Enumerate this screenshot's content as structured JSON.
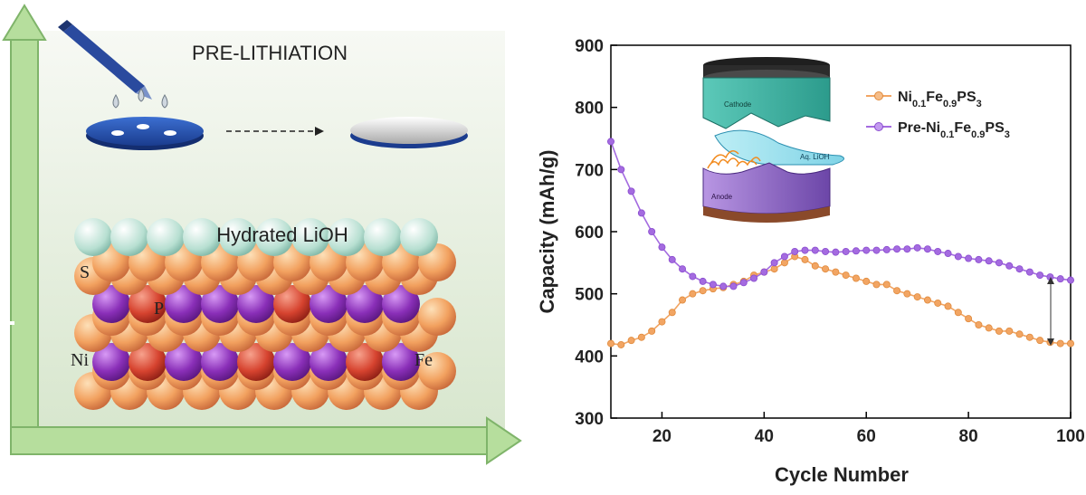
{
  "illustration": {
    "title": "PRE-LITHIATION",
    "layer_label": "Hydrated LiOH",
    "atom_labels": {
      "s": "S",
      "p": "P",
      "ni": "Ni",
      "fe": "Fe"
    },
    "colors": {
      "background": "#dde9d5",
      "axis_arrow": "#a9d590",
      "s_atom": "#f29a5c",
      "p_atom": "#d8453a",
      "metal_atom": "#8a2fb8",
      "lioh": "#a7d7c8"
    }
  },
  "chart_data": {
    "type": "line",
    "xlabel": "Cycle Number",
    "ylabel": "Capacity (mAh/g)",
    "xlim": [
      10,
      100
    ],
    "ylim": [
      300,
      900
    ],
    "xticks": [
      20,
      40,
      60,
      80,
      100
    ],
    "yticks": [
      300,
      400,
      500,
      600,
      700,
      800,
      900
    ],
    "grid": false,
    "legend_position": "top-right",
    "series": [
      {
        "name": "Ni0.1Fe0.9PS3",
        "legend": {
          "base": "Ni",
          "s1": "0.1",
          "mid": "Fe",
          "s2": "0.9",
          "end": "PS",
          "s3": "3"
        },
        "color": "#f2a563",
        "x": [
          10,
          12,
          14,
          16,
          18,
          20,
          22,
          24,
          26,
          28,
          30,
          32,
          34,
          36,
          38,
          40,
          42,
          44,
          46,
          48,
          50,
          52,
          54,
          56,
          58,
          60,
          62,
          64,
          66,
          68,
          70,
          72,
          74,
          76,
          78,
          80,
          82,
          84,
          86,
          88,
          90,
          92,
          94,
          96,
          98,
          100
        ],
        "y": [
          420,
          418,
          425,
          430,
          440,
          455,
          470,
          490,
          500,
          505,
          508,
          510,
          515,
          520,
          530,
          535,
          540,
          550,
          560,
          555,
          545,
          540,
          535,
          530,
          525,
          520,
          515,
          515,
          505,
          500,
          495,
          490,
          485,
          480,
          470,
          460,
          450,
          445,
          440,
          440,
          435,
          430,
          425,
          422,
          420,
          420
        ]
      },
      {
        "name": "Pre-Ni0.1Fe0.9PS3",
        "legend": {
          "base": "Pre-Ni",
          "s1": "0.1",
          "mid": "Fe",
          "s2": "0.9",
          "end": "PS",
          "s3": "3"
        },
        "color": "#a46be0",
        "x": [
          10,
          12,
          14,
          16,
          18,
          20,
          22,
          24,
          26,
          28,
          30,
          32,
          34,
          36,
          38,
          40,
          42,
          44,
          46,
          48,
          50,
          52,
          54,
          56,
          58,
          60,
          62,
          64,
          66,
          68,
          70,
          72,
          74,
          76,
          78,
          80,
          82,
          84,
          86,
          88,
          90,
          92,
          94,
          96,
          98,
          100
        ],
        "y": [
          745,
          700,
          665,
          630,
          600,
          575,
          555,
          540,
          528,
          520,
          515,
          512,
          512,
          518,
          525,
          535,
          550,
          560,
          568,
          570,
          570,
          568,
          567,
          568,
          569,
          570,
          570,
          571,
          572,
          572,
          574,
          572,
          568,
          565,
          560,
          557,
          555,
          553,
          550,
          545,
          540,
          535,
          530,
          527,
          524,
          522
        ]
      }
    ],
    "inset_labels": {
      "cathode": "Cathode",
      "electrolyte": "Aq. LiOH",
      "anode": "Anode"
    }
  }
}
